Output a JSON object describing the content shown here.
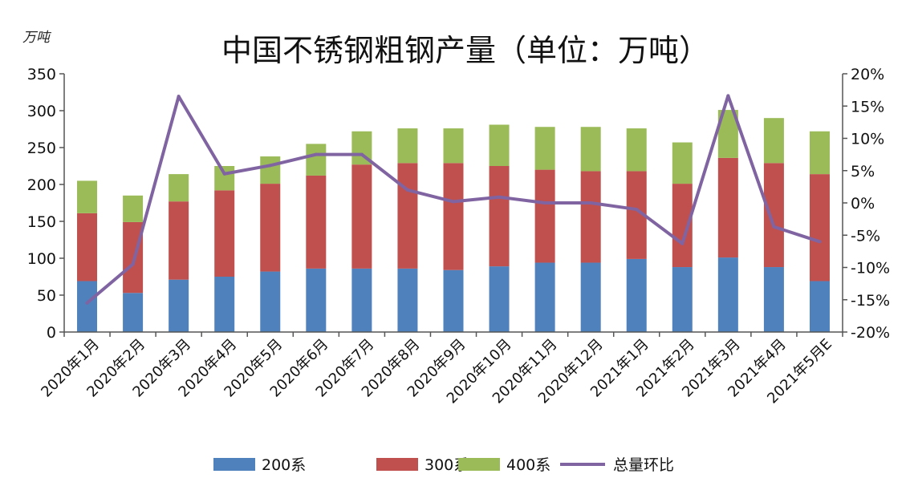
{
  "chart_data": {
    "type": "bar",
    "title": "中国不锈钢粗钢产量（单位：万吨）",
    "ylabel": "万吨",
    "categories": [
      "2020年1月",
      "2020年2月",
      "2020年3月",
      "2020年4月",
      "2020年5月",
      "2020年6月",
      "2020年7月",
      "2020年8月",
      "2020年9月",
      "2020年10月",
      "2020年11月",
      "2020年12月",
      "2021年1月",
      "2021年2月",
      "2021年3月",
      "2021年4月",
      "2021年5月E"
    ],
    "stacked": true,
    "ylim": [
      0,
      350
    ],
    "y2lim": [
      -20,
      20
    ],
    "y_ticks": [
      "0",
      "50",
      "100",
      "150",
      "200",
      "250",
      "300",
      "350"
    ],
    "y2_ticks": [
      "-20%",
      "-15%",
      "-10%",
      "-5%",
      "0%",
      "5%",
      "10%",
      "15%",
      "20%"
    ],
    "series": [
      {
        "name": "200系",
        "color": "#4f81bd",
        "values": [
          69,
          53,
          71,
          75,
          82,
          86,
          86,
          86,
          84,
          89,
          94,
          94,
          99,
          88,
          101,
          88,
          69
        ]
      },
      {
        "name": "300系",
        "color": "#c0504d",
        "values": [
          92,
          96,
          106,
          117,
          119,
          126,
          141,
          143,
          145,
          136,
          126,
          124,
          119,
          113,
          135,
          141,
          145
        ]
      },
      {
        "name": "400系",
        "color": "#9bbb59",
        "values": [
          44,
          36,
          37,
          33,
          37,
          43,
          45,
          47,
          47,
          56,
          58,
          60,
          58,
          56,
          65,
          61,
          58
        ]
      },
      {
        "name": "总量环比",
        "type": "line",
        "axis": "right",
        "color": "#8064a2",
        "values": [
          -15.5,
          -9.5,
          16.5,
          4.5,
          5.8,
          7.5,
          7.5,
          2.0,
          0.2,
          0.9,
          0.0,
          0.0,
          -1.0,
          -6.3,
          16.6,
          -3.7,
          -6.0
        ]
      }
    ],
    "legend_position": "bottom",
    "grid": false
  }
}
